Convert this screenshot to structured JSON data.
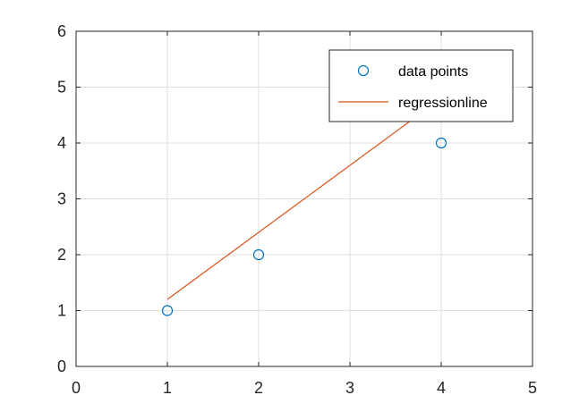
{
  "chart_data": {
    "type": "scatter",
    "title": "",
    "xlabel": "",
    "ylabel": "",
    "xlim": [
      0,
      5
    ],
    "ylim": [
      0,
      6
    ],
    "xticks": [
      0,
      1,
      2,
      3,
      4,
      5
    ],
    "yticks": [
      0,
      1,
      2,
      3,
      4,
      5,
      6
    ],
    "xtick_labels": [
      "0",
      "1",
      "2",
      "3",
      "4",
      "5"
    ],
    "ytick_labels": [
      "0",
      "1",
      "2",
      "3",
      "4",
      "5",
      "6"
    ],
    "grid": true,
    "legend_position": "top-right",
    "series": [
      {
        "name": "data points",
        "kind": "scatter",
        "marker": "circle",
        "color": "#0072BD",
        "x": [
          1,
          2,
          4
        ],
        "y": [
          1,
          2,
          4
        ]
      },
      {
        "name": "regressionline",
        "kind": "line",
        "color": "#D95319",
        "x": [
          1,
          4
        ],
        "y": [
          1.2,
          4.8
        ]
      }
    ]
  },
  "colors": {
    "axis": "#262626",
    "grid": "#dfdfdf",
    "background": "#ffffff"
  }
}
